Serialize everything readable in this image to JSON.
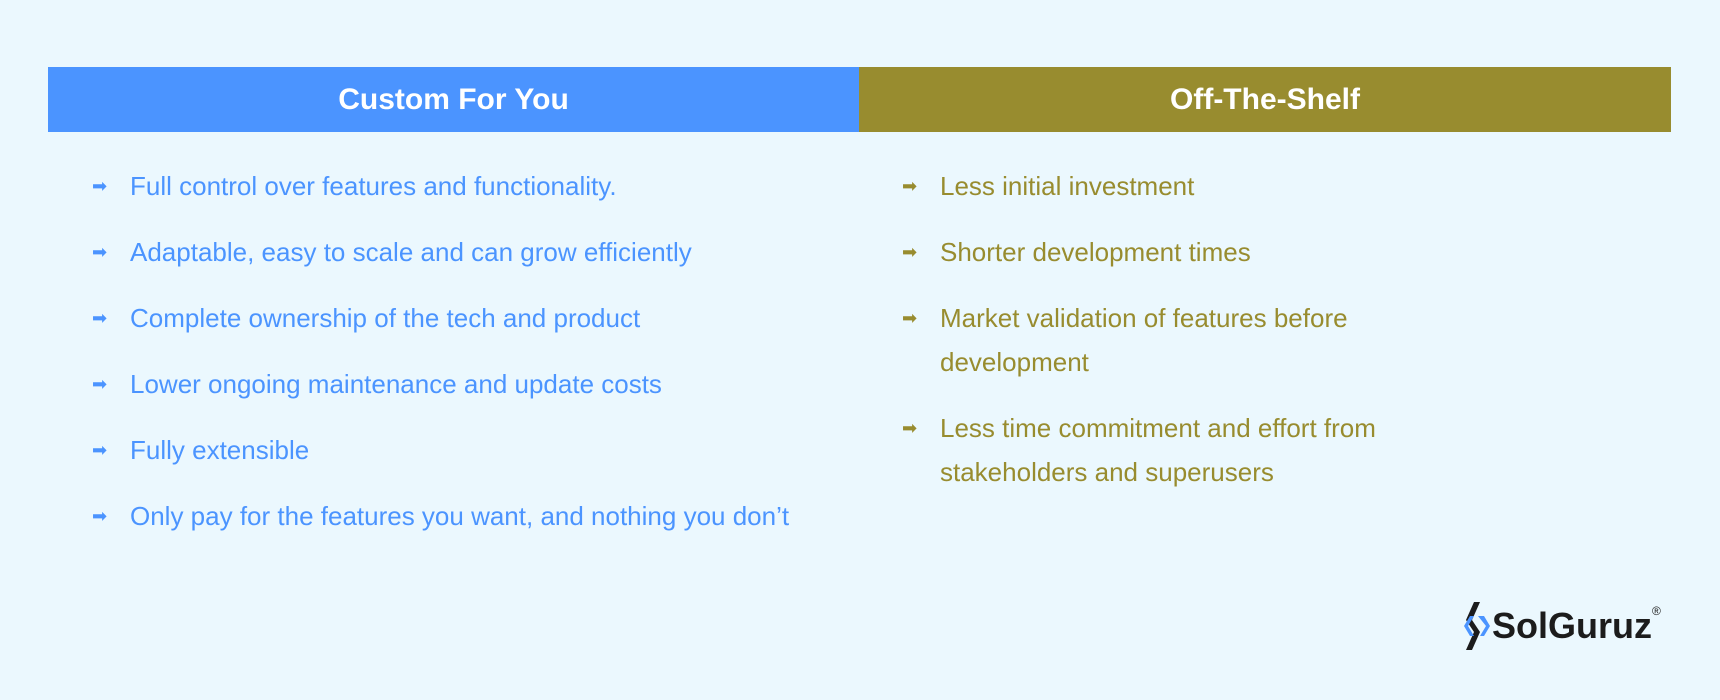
{
  "colors": {
    "custom": "#4b94ff",
    "off_the_shelf": "#988c2f",
    "background": "#ebf8fe"
  },
  "custom": {
    "title": "Custom For You",
    "items": [
      "Full control over features and functionality.",
      "Adaptable, easy to scale and can grow efficiently",
      "Complete ownership of the tech and product",
      "Lower ongoing maintenance and update costs",
      "Fully extensible",
      "Only pay for the features you want, and nothing you don’t"
    ]
  },
  "off_the_shelf": {
    "title": "Off-The-Shelf",
    "items": [
      "Less initial investment",
      "Shorter development times",
      "Market validation of features before development",
      "Less time commitment and effort from stakeholders and superusers"
    ]
  },
  "logo": {
    "text": "SolGuruz",
    "mark": "®"
  }
}
